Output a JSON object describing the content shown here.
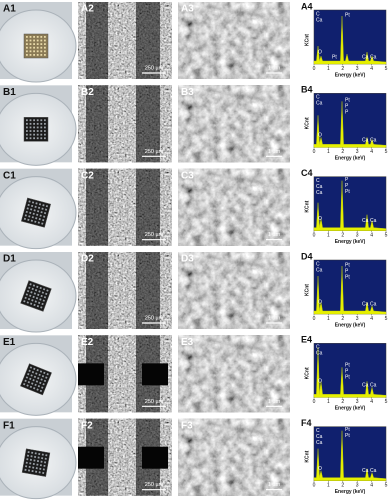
{
  "rows": [
    {
      "photo": {
        "label": "A1"
      },
      "sem_low": {
        "label": "A2",
        "scale_bar": "250 µm"
      },
      "sem_high": {
        "label": "A3",
        "scale_bar": "1 µm"
      },
      "eds": {
        "label": "A4",
        "y_axis": "KCnt",
        "x_axis": "Energy (keV)",
        "x_ticks": [
          0,
          1,
          2,
          3,
          4,
          5
        ],
        "peaks": [
          "C",
          "Ca",
          "O",
          "Pt",
          "Pt",
          "Ca",
          "Ca"
        ]
      }
    },
    {
      "photo": {
        "label": "B1"
      },
      "sem_low": {
        "label": "B2",
        "scale_bar": "250 µm"
      },
      "sem_high": {
        "label": "B3",
        "scale_bar": "1 µm"
      },
      "eds": {
        "label": "B4",
        "y_axis": "KCnt",
        "x_axis": "Energy (keV)",
        "x_ticks": [
          0,
          1,
          2,
          3,
          4,
          5
        ],
        "peaks": [
          "C",
          "Ca",
          "O",
          "Pt",
          "P",
          "P",
          "Ca",
          "Ca"
        ]
      }
    },
    {
      "photo": {
        "label": "C1"
      },
      "sem_low": {
        "label": "C2",
        "scale_bar": "250 µm"
      },
      "sem_high": {
        "label": "C3",
        "scale_bar": "1 µm"
      },
      "eds": {
        "label": "C4",
        "y_axis": "KCnt",
        "x_axis": "Energy (keV)",
        "x_ticks": [
          0,
          1,
          2,
          3,
          4,
          5
        ],
        "peaks": [
          "C",
          "Ca",
          "Ca",
          "O",
          "P",
          "P",
          "Pt",
          "Ca",
          "Ca"
        ]
      }
    },
    {
      "photo": {
        "label": "D1"
      },
      "sem_low": {
        "label": "D2",
        "scale_bar": "250 µm"
      },
      "sem_high": {
        "label": "D3",
        "scale_bar": "1 µm"
      },
      "eds": {
        "label": "D4",
        "y_axis": "KCnt",
        "x_axis": "Energy (keV)",
        "x_ticks": [
          0,
          1,
          2,
          3,
          4,
          5
        ],
        "peaks": [
          "C",
          "Ca",
          "O",
          "Pt",
          "P",
          "Pt",
          "Ca",
          "Ca"
        ]
      }
    },
    {
      "photo": {
        "label": "E1"
      },
      "sem_low": {
        "label": "E2",
        "scale_bar": "250 µm"
      },
      "sem_high": {
        "label": "E3",
        "scale_bar": "1 µm"
      },
      "eds": {
        "label": "E4",
        "y_axis": "KCnt",
        "x_axis": "Energy (keV)",
        "x_ticks": [
          0,
          1,
          2,
          3,
          4,
          5
        ],
        "peaks": [
          "C",
          "Ca",
          "O",
          "Pt",
          "P",
          "Pt",
          "Ca",
          "Ca"
        ]
      }
    },
    {
      "photo": {
        "label": "F1"
      },
      "sem_low": {
        "label": "F2",
        "scale_bar": "250 µm"
      },
      "sem_high": {
        "label": "F3",
        "scale_bar": "1 µm"
      },
      "eds": {
        "label": "F4",
        "y_axis": "KCnt",
        "x_axis": "Energy (keV)",
        "x_ticks": [
          0,
          1,
          2,
          3,
          4,
          5
        ],
        "peaks": [
          "C",
          "Ca",
          "Ca",
          "O",
          "Pt",
          "Pt",
          "Ca",
          "Ca"
        ]
      }
    }
  ]
}
